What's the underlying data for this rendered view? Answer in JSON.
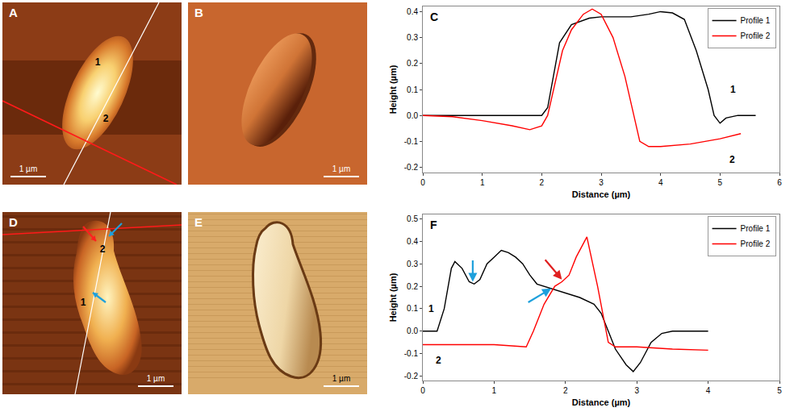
{
  "image_panels": [
    {
      "label": "A",
      "markers": [
        "1",
        "2"
      ],
      "scale_bar": "1 µm"
    },
    {
      "label": "B",
      "scale_bar": "1 µm"
    },
    {
      "label": "D",
      "markers": [
        "2",
        "1"
      ],
      "scale_bar": "1 µm"
    },
    {
      "label": "E",
      "scale_bar": "1 µm"
    }
  ],
  "chart_data": [
    {
      "panel": "C",
      "type": "line",
      "x_label": "Distance (µm)",
      "y_label": "Height (µm)",
      "xlim": [
        0,
        6
      ],
      "xticks": [
        0,
        1,
        2,
        3,
        4,
        5,
        6
      ],
      "ylim": [
        -0.22,
        0.42
      ],
      "yticks": [
        -0.2,
        -0.1,
        {
          "value": 0,
          "label": "0.0"
        },
        0.1,
        0.2,
        0.3,
        0.4
      ],
      "grid": false,
      "legend": "top right",
      "series": [
        {
          "name": "Profile 1",
          "color": "#000000",
          "x": [
            0,
            0.5,
            1,
            1.5,
            2,
            2.1,
            2.2,
            2.3,
            2.5,
            2.8,
            3,
            3.5,
            3.8,
            4,
            4.2,
            4.4,
            4.6,
            4.8,
            4.9,
            5,
            5.1,
            5.3,
            5.6
          ],
          "values": [
            0,
            0,
            0,
            0,
            0,
            0.03,
            0.15,
            0.28,
            0.35,
            0.375,
            0.38,
            0.38,
            0.39,
            0.4,
            0.395,
            0.37,
            0.25,
            0.1,
            0,
            -0.03,
            -0.01,
            0,
            0
          ]
        },
        {
          "name": "Profile 2",
          "color": "#ff0000",
          "x": [
            0,
            0.5,
            1,
            1.5,
            1.8,
            2,
            2.1,
            2.2,
            2.35,
            2.5,
            2.7,
            2.85,
            3,
            3.2,
            3.4,
            3.55,
            3.65,
            3.8,
            4,
            4.5,
            5,
            5.35
          ],
          "values": [
            0,
            -0.005,
            -0.02,
            -0.04,
            -0.055,
            -0.04,
            0,
            0.1,
            0.25,
            0.33,
            0.39,
            0.41,
            0.39,
            0.3,
            0.15,
            0,
            -0.1,
            -0.12,
            -0.12,
            -0.11,
            -0.09,
            -0.07
          ]
        }
      ],
      "annotations": [
        {
          "text": "1",
          "x": 5.22,
          "y": 0.1
        },
        {
          "text": "2",
          "x": 5.2,
          "y": -0.17
        }
      ]
    },
    {
      "panel": "F",
      "type": "line",
      "x_label": "Distance (µm)",
      "y_label": "Height (µm)",
      "xlim": [
        0,
        5
      ],
      "xticks": [
        0,
        1,
        2,
        3,
        4,
        5
      ],
      "ylim": [
        -0.22,
        0.52
      ],
      "yticks": [
        -0.2,
        -0.1,
        {
          "value": 0,
          "label": "0.0"
        },
        0.1,
        0.2,
        0.3,
        0.4,
        0.5
      ],
      "grid": false,
      "legend": "top right",
      "series": [
        {
          "name": "Profile 1",
          "color": "#000000",
          "x": [
            0,
            0.2,
            0.3,
            0.4,
            0.45,
            0.55,
            0.65,
            0.72,
            0.8,
            0.9,
            1,
            1.1,
            1.2,
            1.3,
            1.4,
            1.5,
            1.6,
            1.8,
            2,
            2.2,
            2.4,
            2.5,
            2.6,
            2.7,
            2.85,
            2.95,
            3.05,
            3.2,
            3.35,
            3.5,
            4
          ],
          "values": [
            0,
            0,
            0.1,
            0.28,
            0.31,
            0.28,
            0.22,
            0.21,
            0.23,
            0.3,
            0.33,
            0.36,
            0.35,
            0.33,
            0.3,
            0.25,
            0.21,
            0.19,
            0.17,
            0.15,
            0.12,
            0.08,
            0,
            -0.08,
            -0.15,
            -0.18,
            -0.14,
            -0.05,
            -0.01,
            0,
            0
          ]
        },
        {
          "name": "Profile 2",
          "color": "#ff0000",
          "x": [
            0,
            0.5,
            1,
            1.45,
            1.55,
            1.7,
            1.85,
            1.95,
            2.05,
            2.15,
            2.3,
            2.45,
            2.6,
            2.7,
            3,
            3.5,
            4
          ],
          "values": [
            -0.06,
            -0.06,
            -0.06,
            -0.07,
            0,
            0.12,
            0.2,
            0.22,
            0.25,
            0.33,
            0.42,
            0.2,
            -0.05,
            -0.07,
            -0.07,
            -0.08,
            -0.085
          ]
        }
      ],
      "annotations": [
        {
          "text": "1",
          "x": 0.12,
          "y": 0.1
        },
        {
          "text": "2",
          "x": 0.22,
          "y": -0.13
        }
      ],
      "arrows": [
        {
          "x": 0.7,
          "y": 0.22,
          "color": "#1ea0dc"
        },
        {
          "x": 1.8,
          "y": 0.19,
          "color": "#1ea0dc"
        },
        {
          "x": 1.95,
          "y": 0.23,
          "color": "#e02020"
        }
      ]
    }
  ]
}
